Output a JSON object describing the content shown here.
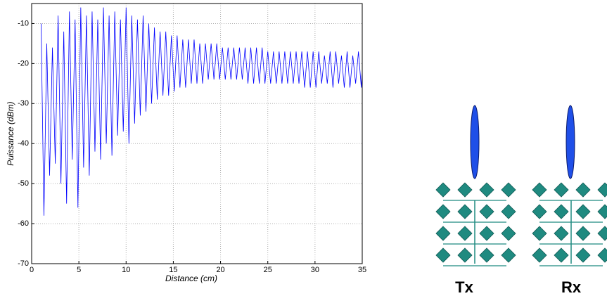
{
  "chart_data": {
    "type": "line",
    "xlabel": "Distance (cm)",
    "ylabel": "Puissance (dBm)",
    "x": [
      1.0,
      1.3,
      1.6,
      1.9,
      2.2,
      2.5,
      2.8,
      3.1,
      3.4,
      3.7,
      4.0,
      4.3,
      4.6,
      4.9,
      5.2,
      5.5,
      5.8,
      6.1,
      6.4,
      6.7,
      7.0,
      7.3,
      7.6,
      7.9,
      8.2,
      8.5,
      8.8,
      9.1,
      9.4,
      9.7,
      10.0,
      10.3,
      10.6,
      10.9,
      11.2,
      11.5,
      11.8,
      12.1,
      12.4,
      12.7,
      13.0,
      13.3,
      13.6,
      13.9,
      14.2,
      14.5,
      14.8,
      15.1,
      15.4,
      15.7,
      16.0,
      16.3,
      16.6,
      16.9,
      17.2,
      17.5,
      17.8,
      18.1,
      18.4,
      18.7,
      19.0,
      19.3,
      19.6,
      19.9,
      20.2,
      20.5,
      20.8,
      21.1,
      21.4,
      21.7,
      22.0,
      22.3,
      22.6,
      22.9,
      23.2,
      23.5,
      23.8,
      24.1,
      24.4,
      24.7,
      25.0,
      25.3,
      25.6,
      25.9,
      26.2,
      26.5,
      26.8,
      27.1,
      27.4,
      27.7,
      28.0,
      28.3,
      28.6,
      28.9,
      29.2,
      29.5,
      29.8,
      30.1,
      30.4,
      30.7,
      31.0,
      31.3,
      31.6,
      31.9,
      32.2,
      32.5,
      32.8,
      33.1,
      33.4,
      33.7,
      34.0,
      34.3,
      34.6,
      34.9,
      35.0
    ],
    "series": [
      {
        "color": "#0000ff",
        "values": [
          -10,
          -58,
          -15,
          -48,
          -16,
          -45,
          -8,
          -50,
          -12,
          -55,
          -7,
          -44,
          -9,
          -56,
          -6,
          -46,
          -8,
          -48,
          -7,
          -42,
          -9,
          -44,
          -6,
          -40,
          -8,
          -43,
          -7,
          -38,
          -9,
          -37,
          -6,
          -40,
          -8,
          -35,
          -9,
          -33,
          -8,
          -32,
          -10,
          -30,
          -11,
          -29,
          -12,
          -28,
          -12,
          -28,
          -13,
          -27,
          -13,
          -26,
          -14,
          -26,
          -14,
          -25,
          -14,
          -25,
          -15,
          -25,
          -15,
          -24,
          -15,
          -24,
          -15,
          -24,
          -16,
          -24,
          -16,
          -24,
          -16,
          -24,
          -16,
          -24,
          -16,
          -25,
          -16,
          -25,
          -16,
          -25,
          -16,
          -25,
          -17,
          -25,
          -17,
          -25,
          -17,
          -25,
          -17,
          -25,
          -17,
          -25,
          -17,
          -25,
          -17,
          -26,
          -17,
          -26,
          -17,
          -26,
          -17,
          -25,
          -18,
          -25,
          -17,
          -26,
          -17,
          -25,
          -18,
          -26,
          -17,
          -26,
          -18,
          -25,
          -17,
          -26,
          -22
        ]
      }
    ],
    "xlim": [
      0,
      35
    ],
    "xticks": [
      0,
      5,
      10,
      15,
      20,
      25,
      30,
      35
    ],
    "ylim": [
      -70,
      -5
    ],
    "yticks": [
      -70,
      -60,
      -50,
      -40,
      -30,
      -20,
      -10
    ],
    "grid": true
  },
  "diagram": {
    "labels": [
      "Tx",
      "Rx"
    ]
  }
}
